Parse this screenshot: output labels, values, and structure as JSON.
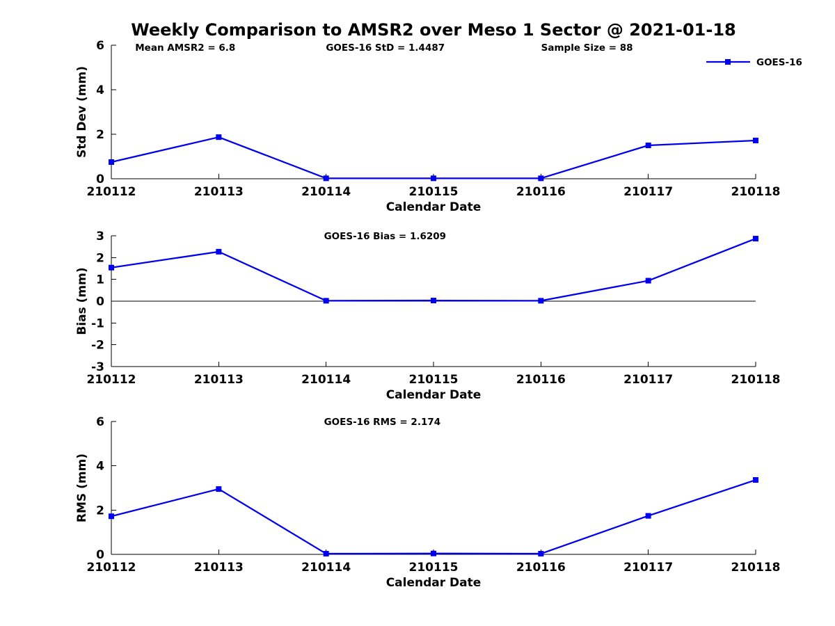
{
  "title": "Weekly Comparison to AMSR2 over Meso 1 Sector @ 2021-01-18",
  "legend": {
    "label": "GOES-16"
  },
  "colors": {
    "series": "#0000EE",
    "axis": "#000000",
    "text": "#000000",
    "background": "#FFFFFF"
  },
  "chart_data": [
    {
      "type": "line",
      "panel": "std-dev",
      "categories": [
        "210112",
        "210113",
        "210114",
        "210115",
        "210116",
        "210117",
        "210118"
      ],
      "series": [
        {
          "name": "GOES-16",
          "marker": "square",
          "values": [
            0.75,
            1.87,
            0.02,
            0.02,
            0.02,
            1.5,
            1.72
          ]
        }
      ],
      "xlabel": "Calendar Date",
      "ylabel": "Std Dev (mm)",
      "ylim": [
        0,
        6
      ],
      "yticks": [
        0,
        2,
        4,
        6
      ],
      "grid": false,
      "zero_line": false,
      "legend_position": "top-right",
      "annotations": [
        "Mean AMSR2 = 6.8",
        "GOES-16 StD = 1.4487",
        "Sample Size = 88"
      ]
    },
    {
      "type": "line",
      "panel": "bias",
      "categories": [
        "210112",
        "210113",
        "210114",
        "210115",
        "210116",
        "210117",
        "210118"
      ],
      "series": [
        {
          "name": "GOES-16",
          "marker": "square",
          "values": [
            1.54,
            2.27,
            0.02,
            0.03,
            0.02,
            0.94,
            2.87
          ]
        }
      ],
      "xlabel": "Calendar Date",
      "ylabel": "Bias (mm)",
      "ylim": [
        -3,
        3
      ],
      "yticks": [
        -3,
        -2,
        -1,
        0,
        1,
        2,
        3
      ],
      "grid": false,
      "zero_line": true,
      "legend_position": null,
      "annotations": [
        "GOES-16 Bias  = 1.6209"
      ]
    },
    {
      "type": "line",
      "panel": "rms",
      "categories": [
        "210112",
        "210113",
        "210114",
        "210115",
        "210116",
        "210117",
        "210118"
      ],
      "series": [
        {
          "name": "GOES-16",
          "marker": "square",
          "values": [
            1.72,
            2.95,
            0.03,
            0.04,
            0.03,
            1.74,
            3.36
          ]
        }
      ],
      "xlabel": "Calendar Date",
      "ylabel": "RMS (mm)",
      "ylim": [
        0,
        6
      ],
      "yticks": [
        0,
        2,
        4,
        6
      ],
      "grid": false,
      "zero_line": false,
      "legend_position": null,
      "annotations": [
        "GOES-16 RMS = 2.174"
      ]
    }
  ]
}
